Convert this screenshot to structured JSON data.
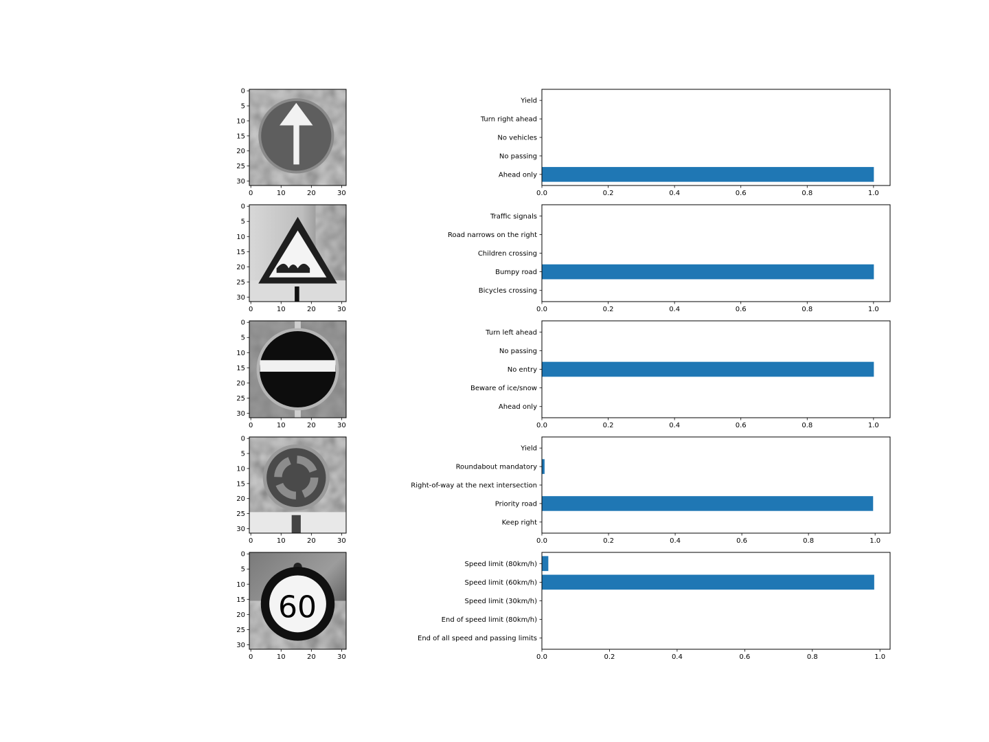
{
  "colors": {
    "bar": "#1f77b4",
    "axis": "#000000",
    "background": "#ffffff"
  },
  "chart_data": [
    {
      "type": "image",
      "image_shows": "ahead-only-sign",
      "x_ticks": [
        "0",
        "10",
        "20",
        "30"
      ],
      "y_ticks": [
        "0",
        "5",
        "10",
        "15",
        "20",
        "25",
        "30"
      ]
    },
    {
      "type": "bar",
      "orientation": "horizontal",
      "categories": [
        "Yield",
        "Turn right ahead",
        "No vehicles",
        "No passing",
        "Ahead only"
      ],
      "values": [
        0.0,
        0.0,
        0.0,
        0.0,
        1.0
      ],
      "xlim": [
        0,
        1.05
      ],
      "x_ticks": [
        "0.0",
        "0.2",
        "0.4",
        "0.6",
        "0.8",
        "1.0"
      ]
    },
    {
      "type": "image",
      "image_shows": "bumpy-road-sign",
      "x_ticks": [
        "0",
        "10",
        "20",
        "30"
      ],
      "y_ticks": [
        "0",
        "5",
        "10",
        "15",
        "20",
        "25",
        "30"
      ]
    },
    {
      "type": "bar",
      "orientation": "horizontal",
      "categories": [
        "Traffic signals",
        "Road narrows on the right",
        "Children crossing",
        "Bumpy road",
        "Bicycles crossing"
      ],
      "values": [
        0.0,
        0.0,
        0.0,
        1.0,
        0.0
      ],
      "xlim": [
        0,
        1.05
      ],
      "x_ticks": [
        "0.0",
        "0.2",
        "0.4",
        "0.6",
        "0.8",
        "1.0"
      ]
    },
    {
      "type": "image",
      "image_shows": "no-entry-sign",
      "x_ticks": [
        "0",
        "10",
        "20",
        "30"
      ],
      "y_ticks": [
        "0",
        "5",
        "10",
        "15",
        "20",
        "25",
        "30"
      ]
    },
    {
      "type": "bar",
      "orientation": "horizontal",
      "categories": [
        "Turn left ahead",
        "No passing",
        "No entry",
        "Beware of ice/snow",
        "Ahead only"
      ],
      "values": [
        0.0,
        0.0,
        1.0,
        0.0,
        0.0
      ],
      "xlim": [
        0,
        1.05
      ],
      "x_ticks": [
        "0.0",
        "0.2",
        "0.4",
        "0.6",
        "0.8",
        "1.0"
      ]
    },
    {
      "type": "image",
      "image_shows": "roundabout-sign",
      "x_ticks": [
        "0",
        "10",
        "20",
        "30"
      ],
      "y_ticks": [
        "0",
        "5",
        "10",
        "15",
        "20",
        "25",
        "30"
      ]
    },
    {
      "type": "bar",
      "orientation": "horizontal",
      "categories": [
        "Yield",
        "Roundabout mandatory",
        "Right-of-way at the next intersection",
        "Priority road",
        "Keep right"
      ],
      "values": [
        0.0,
        0.007,
        0.0,
        0.993,
        0.0
      ],
      "xlim": [
        0,
        1.045
      ],
      "x_ticks": [
        "0.0",
        "0.2",
        "0.4",
        "0.6",
        "0.8",
        "1.0"
      ]
    },
    {
      "type": "image",
      "image_shows": "speed-limit-60-sign",
      "x_ticks": [
        "0",
        "10",
        "20",
        "30"
      ],
      "y_ticks": [
        "0",
        "5",
        "10",
        "15",
        "20",
        "25",
        "30"
      ]
    },
    {
      "type": "bar",
      "orientation": "horizontal",
      "categories": [
        "Speed limit (80km/h)",
        "Speed limit (60km/h)",
        "Speed limit (30km/h)",
        "End of speed limit (80km/h)",
        "End of all speed and passing limits"
      ],
      "values": [
        0.018,
        0.982,
        0.0,
        0.0,
        0.0
      ],
      "xlim": [
        0,
        1.03
      ],
      "x_ticks": [
        "0.0",
        "0.2",
        "0.4",
        "0.6",
        "0.8",
        "1.0"
      ]
    }
  ]
}
